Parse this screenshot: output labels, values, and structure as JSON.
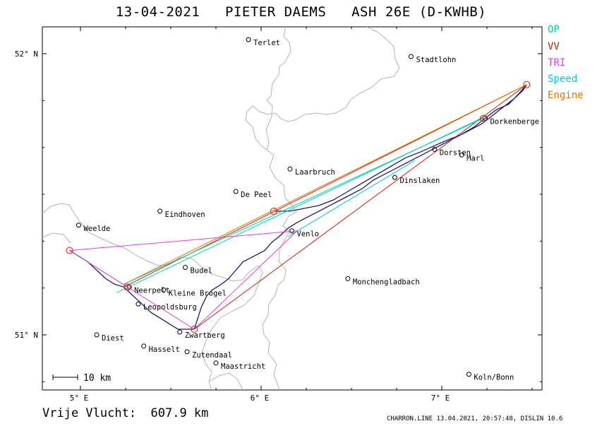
{
  "header": {
    "title": "13-04-2021   PIETER DAEMS   ASH 26E (D-KWHB)"
  },
  "legend": [
    {
      "label": "OP",
      "color": "#00d89a"
    },
    {
      "label": "VV",
      "color": "#d81c00"
    },
    {
      "label": "TRI",
      "color": "#e040e0"
    },
    {
      "label": "Speed",
      "color": "#00c8e0"
    },
    {
      "label": "Engine",
      "color": "#e07800"
    }
  ],
  "axes": {
    "lat_labels": [
      {
        "label": "52° N",
        "lat": 52.0
      },
      {
        "label": "51° N",
        "lat": 51.0
      }
    ],
    "lon_labels": [
      {
        "label": "5° E",
        "lon": 5.0
      },
      {
        "label": "6° E",
        "lon": 6.0
      },
      {
        "label": "7° E",
        "lon": 7.0
      }
    ]
  },
  "scale_bar": {
    "label": "10 km"
  },
  "cities": [
    {
      "name": "Terlet",
      "lon": 5.93,
      "lat": 52.05
    },
    {
      "name": "Stadtlohn",
      "lon": 6.83,
      "lat": 51.99
    },
    {
      "name": "Dorkenberge",
      "lon": 7.24,
      "lat": 51.77
    },
    {
      "name": "Dorsten",
      "lon": 6.96,
      "lat": 51.66
    },
    {
      "name": "Marl",
      "lon": 7.11,
      "lat": 51.64
    },
    {
      "name": "Dinslaken",
      "lon": 6.74,
      "lat": 51.56
    },
    {
      "name": "Laarbruch",
      "lon": 6.16,
      "lat": 51.59
    },
    {
      "name": "De Peel",
      "lon": 5.86,
      "lat": 51.51
    },
    {
      "name": "Eindhoven",
      "lon": 5.44,
      "lat": 51.44
    },
    {
      "name": "Weelde",
      "lon": 4.99,
      "lat": 51.39
    },
    {
      "name": "Venlo",
      "lon": 6.17,
      "lat": 51.37
    },
    {
      "name": "Budel",
      "lon": 5.58,
      "lat": 51.24
    },
    {
      "name": "Monchengladbach",
      "lon": 6.48,
      "lat": 51.2
    },
    {
      "name": "Kleine Brogel",
      "lon": 5.46,
      "lat": 51.16
    },
    {
      "name": "Neerpelt",
      "lon": 5.27,
      "lat": 51.17
    },
    {
      "name": "Leopoldsburg",
      "lon": 5.32,
      "lat": 51.11
    },
    {
      "name": "Diest",
      "lon": 5.09,
      "lat": 51.0
    },
    {
      "name": "Zwartberg",
      "lon": 5.55,
      "lat": 51.01
    },
    {
      "name": "Hasselt",
      "lon": 5.35,
      "lat": 50.96
    },
    {
      "name": "Zutendaal",
      "lon": 5.59,
      "lat": 50.94
    },
    {
      "name": "Maastricht",
      "lon": 5.75,
      "lat": 50.9
    },
    {
      "name": "Koln/Bonn",
      "lon": 7.15,
      "lat": 50.86
    }
  ],
  "turnpoints": [
    {
      "lon": 4.94,
      "lat": 51.3
    },
    {
      "lon": 5.26,
      "lat": 51.17
    },
    {
      "lon": 5.63,
      "lat": 51.02
    },
    {
      "lon": 6.07,
      "lat": 51.44
    },
    {
      "lon": 7.23,
      "lat": 51.77
    },
    {
      "lon": 7.47,
      "lat": 51.89
    }
  ],
  "routes": {
    "op": [
      [
        5.24,
        51.18
      ],
      [
        7.23,
        51.77
      ]
    ],
    "vv": [
      [
        5.24,
        51.17
      ],
      [
        7.47,
        51.89
      ],
      [
        5.63,
        51.02
      ]
    ],
    "tri": [
      [
        4.94,
        51.3
      ],
      [
        6.2,
        51.37
      ],
      [
        5.63,
        51.02
      ],
      [
        4.94,
        51.3
      ]
    ],
    "engine": [
      [
        5.24,
        51.18
      ],
      [
        7.47,
        51.89
      ]
    ]
  },
  "footer": {
    "distance": "Vrije Vlucht:  607.9 km",
    "credit": "CHARRON.LINE 13.04.2021, 20:57:48, DISLIN 10.6"
  }
}
